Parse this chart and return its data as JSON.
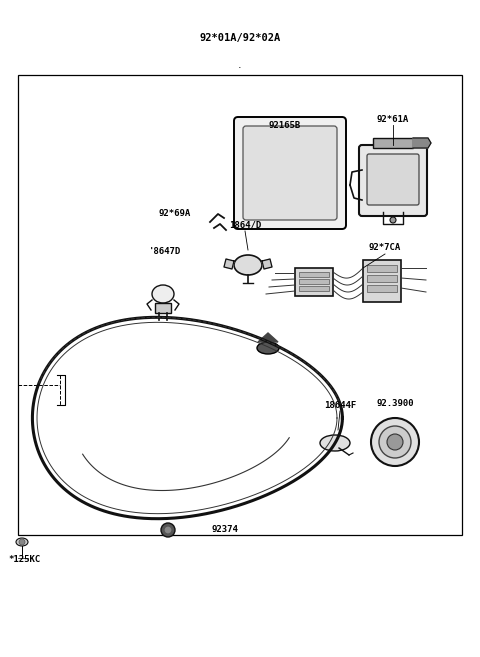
{
  "title": "92*01A/92*02A",
  "bg_color": "#ffffff",
  "text_color": "#000000",
  "labels": {
    "title": "92*01A/92*02A",
    "label_92165B": "92165B",
    "label_9261A": "92*61A",
    "label_9269A": "92*69A",
    "label_18647D": "'8647D",
    "label_18864D": "1864/D",
    "label_927CA": "92*7CA",
    "label_923900": "92.3900",
    "label_18644F": "18644F",
    "label_92374": "92374",
    "label_125KC": "*125KC"
  },
  "figsize": [
    4.8,
    6.57
  ],
  "dpi": 100
}
